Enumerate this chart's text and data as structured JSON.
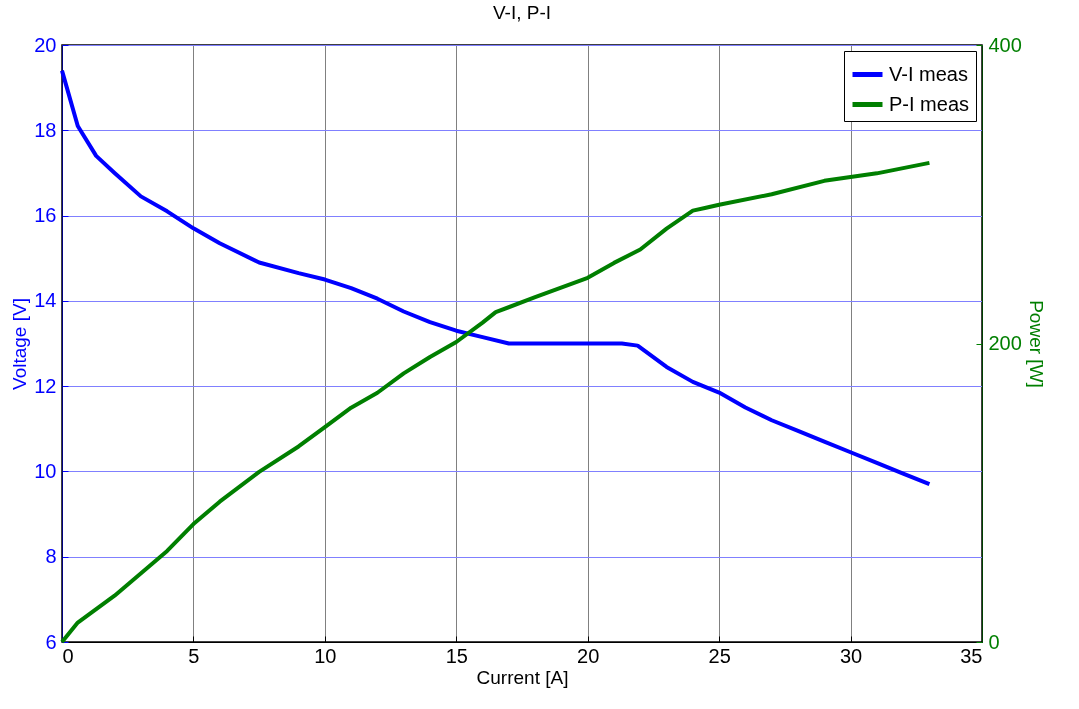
{
  "chart_data": {
    "type": "line",
    "title": "V-I, P-I",
    "xlabel": "Current [A]",
    "ylabel": "Voltage [V]",
    "y2label": "Power [W]",
    "xlim": [
      0,
      35
    ],
    "xticks": [
      0,
      5,
      10,
      15,
      20,
      25,
      30,
      35
    ],
    "ylim": [
      6,
      20
    ],
    "yticks": [
      6,
      8,
      10,
      12,
      14,
      16,
      18,
      20
    ],
    "y2lim": [
      0,
      400
    ],
    "y2ticks": [
      0,
      200,
      400
    ],
    "grid": true,
    "legend": "top right",
    "line_style": "solid",
    "series": [
      {
        "name": "V-I meas",
        "color": "#0000ff",
        "x": [
          0,
          0.6,
          1.3,
          2,
          3,
          4,
          5,
          6,
          7.5,
          9,
          10,
          11,
          12,
          13,
          14,
          15,
          16,
          17,
          21.3,
          21.9,
          23,
          24,
          25,
          26,
          27,
          28,
          29,
          30,
          31,
          32,
          33
        ],
        "values": [
          19.4,
          18.1,
          17.4,
          17.0,
          16.45,
          16.1,
          15.7,
          15.35,
          14.9,
          14.65,
          14.5,
          14.3,
          14.05,
          13.75,
          13.5,
          13.3,
          13.15,
          13.0,
          13.0,
          12.95,
          12.45,
          12.1,
          11.85,
          11.5,
          11.2,
          10.95,
          10.7,
          10.45,
          10.2,
          9.95,
          9.7
        ]
      },
      {
        "name": "P-I meas",
        "color": "#007f00",
        "axis": "y2",
        "x": [
          0,
          0.6,
          2,
          4,
          5,
          6,
          7.5,
          9,
          10,
          11,
          12,
          13,
          14,
          15,
          16,
          16.5,
          18,
          20,
          21,
          22,
          23,
          24,
          24.5,
          25,
          27,
          29,
          31,
          33
        ],
        "values": [
          0,
          13,
          31,
          61,
          79,
          94,
          114,
          131,
          144,
          157,
          167,
          180,
          191,
          201,
          214,
          221,
          231,
          244,
          254,
          263,
          277,
          289,
          291,
          293,
          300,
          309,
          314,
          321
        ]
      }
    ]
  }
}
